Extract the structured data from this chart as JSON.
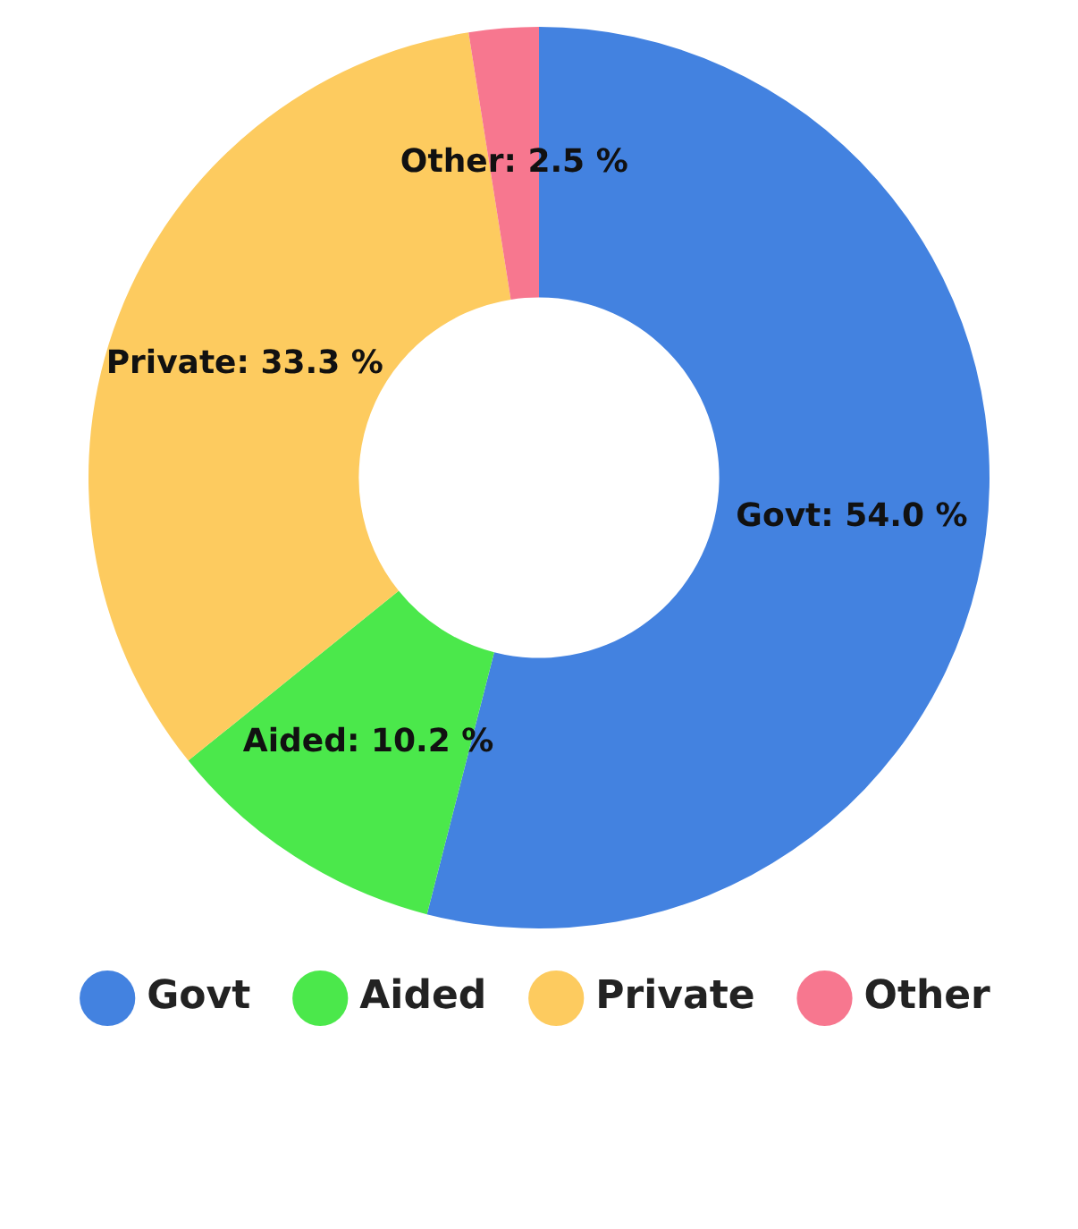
{
  "chart_data": {
    "type": "donut",
    "categories": [
      "Govt",
      "Aided",
      "Private",
      "Other"
    ],
    "values": [
      54.0,
      10.2,
      33.3,
      2.5
    ],
    "colors": [
      "#4382e0",
      "#4be84b",
      "#fdcb5f",
      "#f7778f"
    ],
    "value_labels": [
      "Govt: 54.0 %",
      "Aided: 10.2 %",
      "Private: 33.3 %",
      "Other: 2.5 %"
    ],
    "legend": "bottom"
  }
}
